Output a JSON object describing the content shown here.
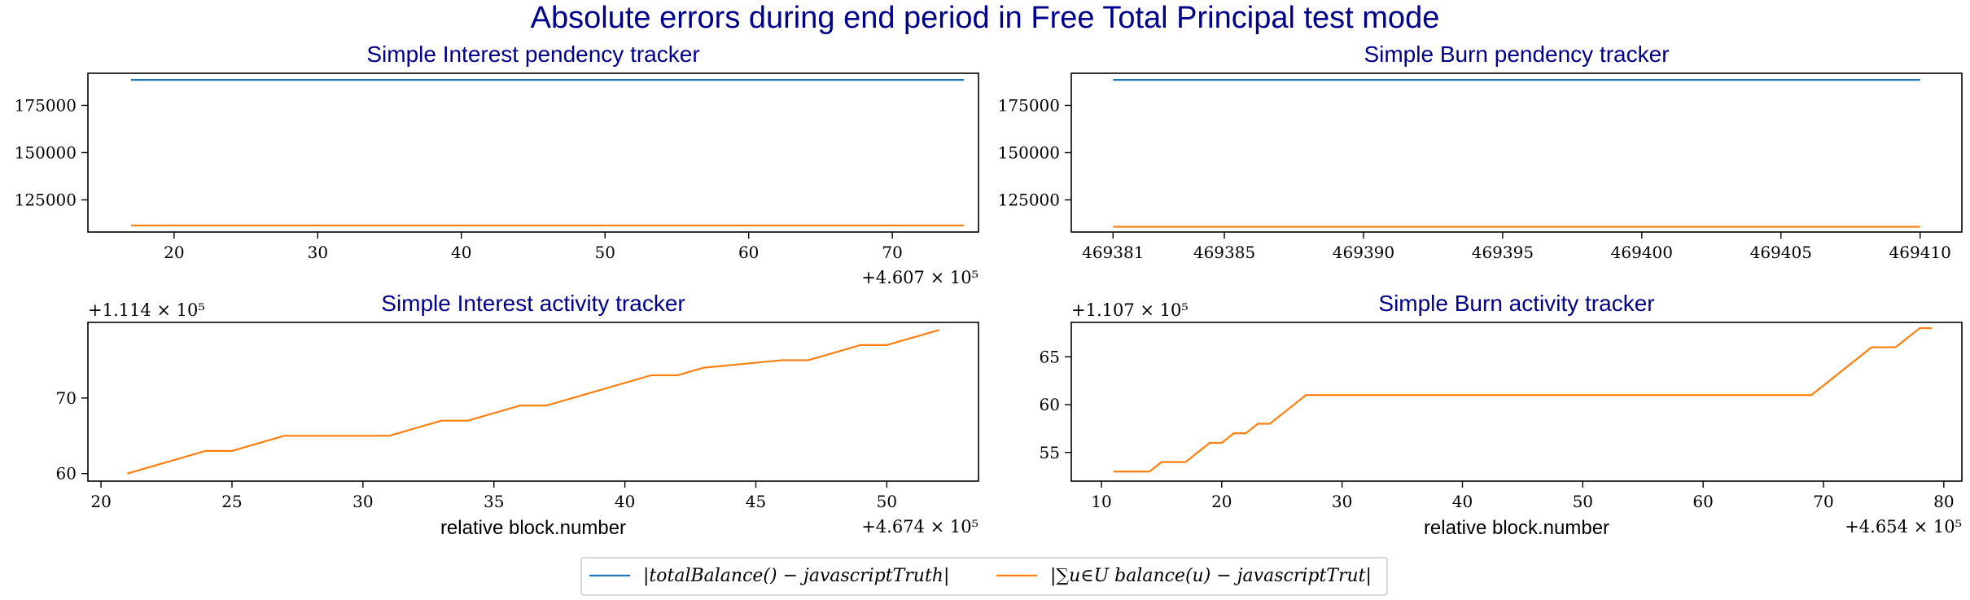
{
  "figure": {
    "title": "Absolute errors during end period in Free Total Principal test mode"
  },
  "legend": {
    "placement": "bottom-center",
    "entries": [
      {
        "label": "|totalBalance() − javascriptTruth|",
        "color": "#1f77b4"
      },
      {
        "label": "|∑u∈U balance(u) − javascriptTrut|",
        "color": "#ff7f0e"
      }
    ]
  },
  "chart_data": [
    {
      "type": "line",
      "title": "Simple Interest pendency tracker",
      "xlabel": "",
      "x_offset": "+4.607 × 10⁵",
      "y_offset": "",
      "xlim": [
        14,
        76
      ],
      "ylim": [
        108000,
        192000
      ],
      "x_ticks": [
        20,
        30,
        40,
        50,
        60,
        70
      ],
      "x_tick_labels": [
        "20",
        "30",
        "40",
        "50",
        "60",
        "70"
      ],
      "y_ticks": [
        125000,
        150000,
        175000
      ],
      "y_tick_labels": [
        "125000",
        "150000",
        "175000"
      ],
      "series": [
        {
          "color": "#1f77b4",
          "x": [
            17,
            75
          ],
          "y": [
            188500,
            188500
          ]
        },
        {
          "color": "#ff7f0e",
          "x": [
            17,
            75
          ],
          "y": [
            111470,
            111470
          ]
        }
      ]
    },
    {
      "type": "line",
      "title": "Simple Burn pendency tracker",
      "xlabel": "",
      "x_offset": "",
      "y_offset": "",
      "xlim": [
        469379.5,
        469411.5
      ],
      "ylim": [
        108000,
        192000
      ],
      "x_ticks": [
        469385,
        469390,
        469395,
        469400,
        469405,
        469410
      ],
      "x_tick_labels": [
        "469385",
        "469390",
        "469395",
        "469400",
        "469405",
        "469410"
      ],
      "extra_x_ticks": [
        469381
      ],
      "extra_x_tick_labels": [
        "469381"
      ],
      "y_ticks": [
        125000,
        150000,
        175000
      ],
      "y_tick_labels": [
        "125000",
        "150000",
        "175000"
      ],
      "series": [
        {
          "color": "#1f77b4",
          "x": [
            469381,
            469410
          ],
          "y": [
            188500,
            188500
          ]
        },
        {
          "color": "#ff7f0e",
          "x": [
            469381,
            469410
          ],
          "y": [
            110770,
            110770
          ]
        }
      ]
    },
    {
      "type": "line",
      "title": "Simple Interest activity tracker",
      "xlabel": "relative block.number",
      "x_offset": "+4.674 × 10⁵",
      "y_offset": "+1.114 × 10⁵",
      "xlim": [
        19.5,
        53.5
      ],
      "ylim": [
        59,
        80
      ],
      "x_ticks": [
        20,
        25,
        30,
        35,
        40,
        45,
        50
      ],
      "x_tick_labels": [
        "20",
        "25",
        "30",
        "35",
        "40",
        "45",
        "50"
      ],
      "y_ticks": [
        60,
        70
      ],
      "y_tick_labels": [
        "60",
        "70"
      ],
      "series": [
        {
          "color": "#1f77b4",
          "x": [],
          "y": []
        },
        {
          "color": "#ff7f0e",
          "x": [
            21,
            24,
            25,
            27,
            31,
            33,
            34,
            36,
            37,
            41,
            42,
            43,
            46,
            47,
            49,
            50,
            52
          ],
          "y": [
            60,
            63,
            63,
            65,
            65,
            67,
            67,
            69,
            69,
            73,
            73,
            74,
            75,
            75,
            77,
            77,
            79
          ]
        }
      ]
    },
    {
      "type": "line",
      "title": "Simple Burn activity tracker",
      "xlabel": "relative block.number",
      "x_offset": "+4.654 × 10⁵",
      "y_offset": "+1.107 × 10⁵",
      "xlim": [
        7.5,
        81.5
      ],
      "ylim": [
        52,
        68.6
      ],
      "x_ticks": [
        10,
        20,
        30,
        40,
        50,
        60,
        70,
        80
      ],
      "x_tick_labels": [
        "10",
        "20",
        "30",
        "40",
        "50",
        "60",
        "70",
        "80"
      ],
      "y_ticks": [
        55,
        60,
        65
      ],
      "y_tick_labels": [
        "55",
        "60",
        "65"
      ],
      "series": [
        {
          "color": "#1f77b4",
          "x": [],
          "y": []
        },
        {
          "color": "#ff7f0e",
          "x": [
            11,
            14,
            15,
            17,
            19,
            20,
            21,
            22,
            23,
            24,
            27,
            69,
            74,
            76,
            78,
            79
          ],
          "y": [
            53,
            53,
            54,
            54,
            56,
            56,
            57,
            57,
            58,
            58,
            61,
            61,
            66,
            66,
            68,
            68
          ]
        }
      ]
    }
  ]
}
